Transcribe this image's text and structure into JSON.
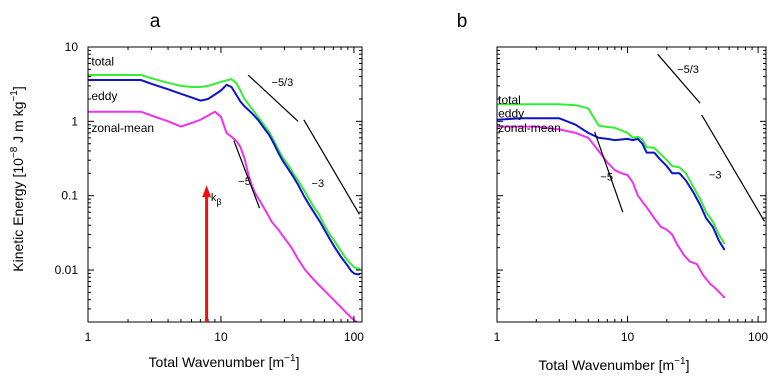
{
  "colors": {
    "total": "#33ee33",
    "eddy": "#1111cc",
    "zonal_mean": "#ee33ee",
    "arrow": "#ee1111",
    "axis": "#000000"
  },
  "chart_data": [
    {
      "type": "line",
      "panel": "a",
      "xlabel": "Total Wavenumber [m",
      "xlabel_sup": "−1",
      "xlabel_end": "]",
      "ylabel": "Kinetic Energy [10",
      "ylabel_sup1": "−8",
      "ylabel_mid": " J m kg",
      "ylabel_sup2": "−1",
      "ylabel_end": "]",
      "x_scale": "log",
      "y_scale": "log",
      "xlim": [
        1,
        115
      ],
      "ylim": [
        0.002,
        10
      ],
      "x_ticks": [
        {
          "value": 1,
          "label": "1"
        },
        {
          "value": 10,
          "label": "10"
        },
        {
          "value": 100,
          "label": "100"
        }
      ],
      "y_ticks": [
        {
          "value": 10,
          "label": "10"
        },
        {
          "value": 1,
          "label": "1"
        },
        {
          "value": 0.1,
          "label": "0.1"
        },
        {
          "value": 0.01,
          "label": "0.01"
        }
      ],
      "series": [
        {
          "name": "total",
          "key": "total",
          "x": [
            1,
            1.5,
            2,
            2.5,
            3,
            4,
            5,
            6,
            7,
            8,
            10,
            12,
            13,
            14,
            15,
            17,
            19,
            21,
            23,
            25,
            27,
            29,
            32,
            35,
            38,
            42,
            46,
            50,
            55,
            60,
            66,
            72,
            80,
            88,
            95,
            100,
            105,
            110
          ],
          "values": [
            4.2,
            4.2,
            4.2,
            4.2,
            3.8,
            3.3,
            3.0,
            2.9,
            2.9,
            3.0,
            3.4,
            3.7,
            3.3,
            2.6,
            2.0,
            1.5,
            1.15,
            0.9,
            0.72,
            0.55,
            0.42,
            0.33,
            0.26,
            0.2,
            0.16,
            0.12,
            0.09,
            0.07,
            0.055,
            0.04,
            0.03,
            0.024,
            0.018,
            0.014,
            0.012,
            0.011,
            0.0105,
            0.0105
          ]
        },
        {
          "name": "eddy",
          "key": "eddy",
          "x": [
            1,
            1.5,
            2,
            2.5,
            3,
            4,
            5,
            6,
            7,
            8,
            10,
            11,
            12,
            13,
            14,
            15,
            17,
            19,
            21,
            23,
            25,
            27,
            29,
            32,
            35,
            38,
            42,
            46,
            50,
            55,
            60,
            66,
            72,
            80,
            88,
            95,
            100,
            105,
            110
          ],
          "values": [
            3.6,
            3.6,
            3.6,
            3.6,
            3.2,
            2.7,
            2.35,
            2.1,
            1.9,
            2.0,
            2.6,
            3.1,
            2.9,
            2.3,
            1.85,
            1.6,
            1.3,
            1.05,
            0.82,
            0.66,
            0.5,
            0.38,
            0.3,
            0.23,
            0.18,
            0.14,
            0.1,
            0.076,
            0.06,
            0.046,
            0.035,
            0.026,
            0.02,
            0.015,
            0.012,
            0.0098,
            0.009,
            0.0088,
            0.0088
          ]
        },
        {
          "name": "zonal-mean",
          "key": "zonal_mean",
          "x": [
            1,
            1.5,
            2,
            2.5,
            3,
            4,
            5,
            6,
            7,
            8,
            9,
            10,
            11,
            12,
            13,
            14,
            15,
            16,
            17,
            18,
            20,
            22,
            24,
            27,
            30,
            34,
            38,
            43,
            48,
            55,
            62,
            70,
            78,
            87,
            95,
            105,
            110
          ],
          "values": [
            1.35,
            1.35,
            1.35,
            1.35,
            1.2,
            1.0,
            0.85,
            0.95,
            1.05,
            1.2,
            1.35,
            1.15,
            0.7,
            0.62,
            0.55,
            0.45,
            0.32,
            0.2,
            0.14,
            0.11,
            0.08,
            0.06,
            0.045,
            0.035,
            0.027,
            0.02,
            0.014,
            0.01,
            0.008,
            0.0062,
            0.005,
            0.004,
            0.0033,
            0.0027,
            0.0023,
            0.002,
            0.0019
          ]
        }
      ],
      "series_labels": [
        {
          "text": "total",
          "key": "total",
          "at_x": 1.06,
          "at_y": 5.6
        },
        {
          "text": "eddy",
          "key": "eddy",
          "at_x": 1.06,
          "at_y": 1.95
        },
        {
          "text": "zonal-mean",
          "key": "zonal_mean",
          "at_x": 1.06,
          "at_y": 0.72
        }
      ],
      "slope_lines": [
        {
          "label": "−5/3",
          "x": [
            16,
            38
          ],
          "y": [
            4.2,
            1.0
          ],
          "label_x": 24,
          "label_y": 3.0
        },
        {
          "label": "−3",
          "x": [
            42,
            110
          ],
          "y": [
            1.05,
            0.056
          ],
          "label_x": 48,
          "label_y": 0.13
        },
        {
          "label": "−5",
          "x": [
            12.5,
            19.5
          ],
          "y": [
            0.55,
            0.068
          ],
          "label_x": 13.5,
          "label_y": 0.14
        }
      ],
      "arrow": {
        "x": 7.8,
        "y_from": 0.002,
        "y_to": 0.13,
        "label": "k",
        "label_sub": "β",
        "label_x": 8.4,
        "label_y": 0.085
      }
    },
    {
      "type": "line",
      "panel": "b",
      "xlabel": "Total Wavenumber [m",
      "xlabel_sup": "−1",
      "xlabel_end": "]",
      "x_scale": "log",
      "y_scale": "log",
      "xlim": [
        1,
        115
      ],
      "ylim": [
        0.002,
        10
      ],
      "x_ticks": [
        {
          "value": 1,
          "label": "1"
        },
        {
          "value": 10,
          "label": "10"
        },
        {
          "value": 100,
          "label": "100"
        }
      ],
      "y_ticks": [],
      "series": [
        {
          "name": "total",
          "key": "total",
          "x": [
            1,
            1.5,
            2,
            3,
            4,
            5,
            6,
            7,
            8,
            10,
            11,
            12,
            13,
            14,
            16,
            18,
            20,
            22,
            25,
            28,
            32,
            36,
            40,
            45,
            50,
            55
          ],
          "values": [
            1.7,
            1.7,
            1.7,
            1.7,
            1.65,
            1.5,
            0.88,
            0.84,
            0.82,
            0.7,
            0.6,
            0.62,
            0.57,
            0.45,
            0.44,
            0.36,
            0.3,
            0.25,
            0.24,
            0.2,
            0.13,
            0.09,
            0.06,
            0.045,
            0.03,
            0.023
          ]
        },
        {
          "name": "eddy",
          "key": "eddy",
          "x": [
            1,
            1.5,
            2,
            3,
            4,
            5,
            6,
            7,
            8,
            10,
            11,
            12,
            13,
            14,
            16,
            18,
            20,
            22,
            25,
            28,
            32,
            36,
            40,
            45,
            50,
            55
          ],
          "values": [
            1.05,
            1.1,
            1.1,
            1.1,
            0.9,
            0.7,
            0.6,
            0.58,
            0.56,
            0.58,
            0.56,
            0.58,
            0.5,
            0.38,
            0.38,
            0.3,
            0.25,
            0.2,
            0.2,
            0.16,
            0.11,
            0.075,
            0.05,
            0.038,
            0.025,
            0.019
          ]
        },
        {
          "name": "zonal-mean",
          "key": "zonal_mean",
          "x": [
            1,
            1.5,
            2,
            3,
            4,
            5,
            6,
            7,
            8,
            9,
            10,
            11,
            12,
            14,
            16,
            18,
            20,
            22,
            24,
            27,
            30,
            34,
            38,
            43,
            48,
            55
          ],
          "values": [
            0.85,
            0.85,
            0.85,
            0.78,
            0.7,
            0.6,
            0.4,
            0.28,
            0.22,
            0.2,
            0.19,
            0.15,
            0.1,
            0.07,
            0.05,
            0.038,
            0.035,
            0.03,
            0.022,
            0.016,
            0.013,
            0.012,
            0.0085,
            0.0065,
            0.0055,
            0.0043
          ]
        }
      ],
      "series_labels": [
        {
          "text": "total",
          "key": "total",
          "at_x": 1.02,
          "at_y": 1.72
        },
        {
          "text": "eddy",
          "key": "eddy",
          "at_x": 1.02,
          "at_y": 1.13
        },
        {
          "text": "zonal-mean",
          "key": "zonal_mean",
          "at_x": 1.02,
          "at_y": 0.72
        }
      ],
      "slope_lines": [
        {
          "label": "−5/3",
          "x": [
            17,
            36
          ],
          "y": [
            8.0,
            1.75
          ],
          "label_x": 24,
          "label_y": 4.5
        },
        {
          "label": "−3",
          "x": [
            37,
            112
          ],
          "y": [
            1.22,
            0.045
          ],
          "label_x": 42,
          "label_y": 0.17
        },
        {
          "label": "−5",
          "x": [
            5.6,
            9.2
          ],
          "y": [
            0.72,
            0.06
          ],
          "label_x": 6.2,
          "label_y": 0.16
        }
      ],
      "panel_label": "b"
    }
  ]
}
